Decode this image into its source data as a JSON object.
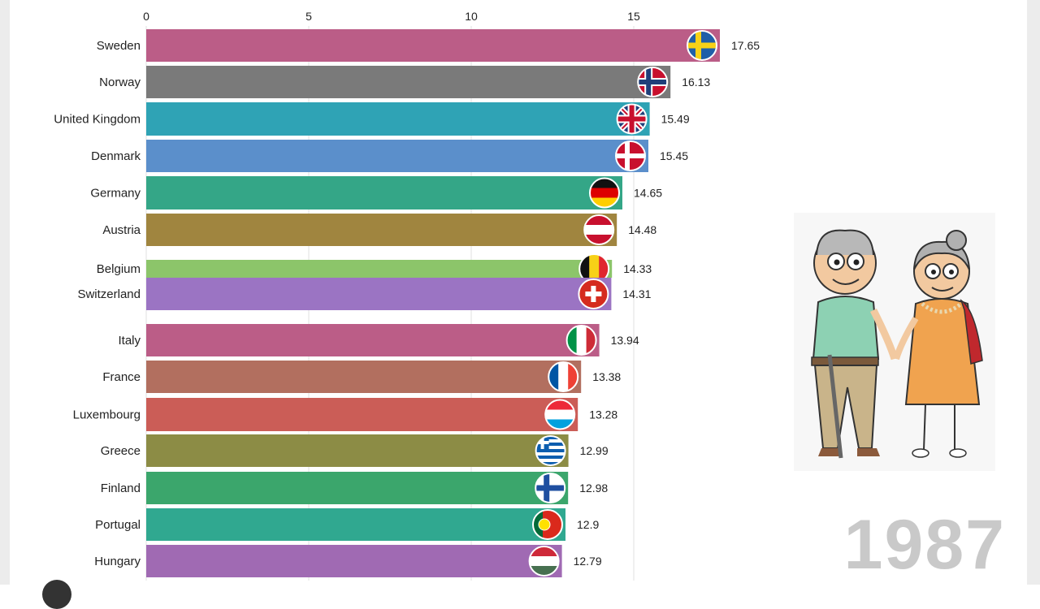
{
  "chart_data": {
    "type": "bar",
    "orientation": "horizontal",
    "year": "1987",
    "xlim": [
      0,
      17.65
    ],
    "x_ticks": [
      "0",
      "5",
      "10",
      "15"
    ],
    "grid": true,
    "categories": [
      "Sweden",
      "Norway",
      "United Kingdom",
      "Denmark",
      "Germany",
      "Austria",
      "Belgium",
      "Switzerland",
      "Italy",
      "France",
      "Luxembourg",
      "Greece",
      "Finland",
      "Portugal",
      "Hungary"
    ],
    "values": [
      17.65,
      16.13,
      15.49,
      15.45,
      14.65,
      14.48,
      14.33,
      14.31,
      13.94,
      13.38,
      13.28,
      12.99,
      12.98,
      12.9,
      12.79
    ],
    "value_labels": [
      "17.65",
      "16.13",
      "15.49",
      "15.45",
      "14.65",
      "14.48",
      "14.33",
      "14.31",
      "13.94",
      "13.38",
      "13.28",
      "12.99",
      "12.98",
      "12.9",
      "12.79"
    ],
    "colors": [
      "#bb5d87",
      "#7a7a7a",
      "#2fa3b5",
      "#5b8fcb",
      "#34a687",
      "#a0853f",
      "#8cc56a",
      "#9b74c3",
      "#bb5d87",
      "#b26f5f",
      "#cb5d57",
      "#8c8c45",
      "#3ba66c",
      "#30a890",
      "#a06ab3"
    ],
    "flag_icons": [
      "flag-sweden-icon",
      "flag-norway-icon",
      "flag-united-kingdom-icon",
      "flag-denmark-icon",
      "flag-germany-icon",
      "flag-austria-icon",
      "flag-belgium-icon",
      "flag-switzerland-icon",
      "flag-italy-icon",
      "flag-france-icon",
      "flag-luxembourg-icon",
      "flag-greece-icon",
      "flag-finland-icon",
      "flag-portugal-icon",
      "flag-hungary-icon"
    ]
  }
}
